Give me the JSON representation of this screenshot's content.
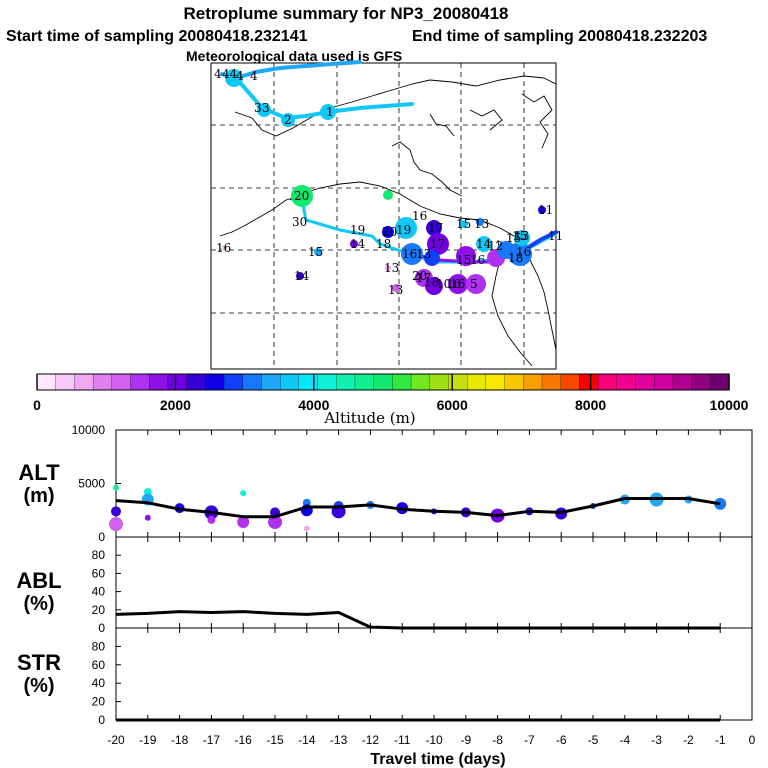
{
  "header": {
    "title": "Retroplume summary for NP3_20080418",
    "start": "Start time of sampling 20080418.232141",
    "end": "End time of sampling 20080418.232203",
    "met": "Meteorological data used is GFS"
  },
  "colorbar": {
    "xlabel": "Altitude (m)",
    "ticks": [
      "0",
      "2000",
      "4000",
      "6000",
      "8000",
      "10000"
    ],
    "colors": [
      "#ffe8ff",
      "#f8c8f8",
      "#f0a8f0",
      "#e080f0",
      "#d060f0",
      "#b030f0",
      "#9010e8",
      "#7000e0",
      "#3800d8",
      "#1000e8",
      "#1040f8",
      "#1878f8",
      "#20a8f8",
      "#10c8f8",
      "#00e8f8",
      "#10f0d8",
      "#10f0b0",
      "#10f090",
      "#10e870",
      "#30e840",
      "#70e820",
      "#a0e010",
      "#c8e010",
      "#e8e800",
      "#f8e800",
      "#f8c800",
      "#f8a000",
      "#f87800",
      "#f84800",
      "#f80000",
      "#f8007a",
      "#f00090",
      "#e000a0",
      "#d000a0",
      "#b00090",
      "#900080",
      "#700070"
    ]
  },
  "map": {
    "labels": [
      "4",
      "44",
      "4",
      "4",
      "3",
      "3",
      "2",
      "1",
      "20",
      "30",
      "19",
      "19",
      "16",
      "14",
      "20",
      "18",
      "16",
      "13",
      "15",
      "13",
      "14",
      "17",
      "11",
      "16",
      "15",
      "13",
      "14",
      "12",
      "18",
      "15",
      "16",
      "17",
      "15",
      "16",
      "13",
      "17",
      "20",
      "10",
      "18",
      "10",
      "16",
      "5",
      "15",
      "13",
      "11"
    ]
  },
  "chart_data": [
    {
      "type": "scatter",
      "title": "ALT (m)",
      "panel_label": "ALT",
      "panel_unit": "(m)",
      "ylim": [
        0,
        10000
      ],
      "yticks": [
        "10000",
        "5000",
        "0"
      ],
      "line": {
        "x": [
          -20,
          -19,
          -18,
          -17,
          -16,
          -15,
          -14,
          -13,
          -12,
          -11,
          -10,
          -9,
          -8,
          -7,
          -6,
          -5,
          -4,
          -3,
          -2,
          -1
        ],
        "y": [
          3400,
          3200,
          2600,
          2300,
          1900,
          1900,
          2800,
          2800,
          3000,
          2600,
          2400,
          2300,
          2000,
          2400,
          2300,
          2900,
          3600,
          3600,
          3600,
          3100
        ]
      },
      "points": {
        "x": [
          -20,
          -20,
          -20,
          -19,
          -19,
          -19,
          -18,
          -17,
          -17,
          -16,
          -16,
          -15,
          -15,
          -14,
          -14,
          -14,
          -13,
          -13,
          -12,
          -11,
          -10,
          -9,
          -8,
          -7,
          -6,
          -5,
          -4,
          -3,
          -2,
          -1
        ],
        "y": [
          4600,
          2400,
          1200,
          4200,
          3500,
          1800,
          2700,
          2300,
          1600,
          1400,
          4100,
          2300,
          1400,
          3200,
          2500,
          800,
          2900,
          2400,
          3000,
          2700,
          2400,
          2300,
          2000,
          2400,
          2200,
          2900,
          3500,
          3500,
          3500,
          3100
        ]
      }
    },
    {
      "type": "line",
      "title": "ABL (%)",
      "panel_label": "ABL",
      "panel_unit": "(%)",
      "ylim": [
        0,
        100
      ],
      "yticks": [
        "0",
        "20",
        "40",
        "60",
        "80"
      ],
      "x": [
        -20,
        -19,
        -18,
        -17,
        -16,
        -15,
        -14,
        -13,
        -12,
        -11,
        -10,
        -9,
        -8,
        -7,
        -6,
        -5,
        -4,
        -3,
        -2,
        -1
      ],
      "y": [
        15,
        16,
        18,
        17,
        18,
        16,
        15,
        17,
        1,
        0,
        0,
        0,
        0,
        0,
        0,
        0,
        0,
        0,
        0,
        0
      ]
    },
    {
      "type": "line",
      "title": "STR (%)",
      "panel_label": "STR",
      "panel_unit": "(%)",
      "ylim": [
        0,
        100
      ],
      "yticks": [
        "0",
        "20",
        "40",
        "60",
        "80"
      ],
      "x": [
        -20,
        -19,
        -18,
        -17,
        -16,
        -15,
        -14,
        -13,
        -12,
        -11,
        -10,
        -9,
        -8,
        -7,
        -6,
        -5,
        -4,
        -3,
        -2,
        -1
      ],
      "y": [
        0,
        0,
        0,
        0,
        0,
        0,
        0,
        0,
        0,
        0,
        0,
        0,
        0,
        0,
        0,
        0,
        0,
        0,
        0,
        0
      ],
      "xticks": [
        "-20",
        "-19",
        "-18",
        "-17",
        "-16",
        "-15",
        "-14",
        "-13",
        "-12",
        "-11",
        "-10",
        "-9",
        "-8",
        "-7",
        "-6",
        "-5",
        "-4",
        "-3",
        "-2",
        "-1",
        "0"
      ],
      "xlabel": "Travel time (days)",
      "xlim": [
        -20,
        0
      ]
    }
  ]
}
